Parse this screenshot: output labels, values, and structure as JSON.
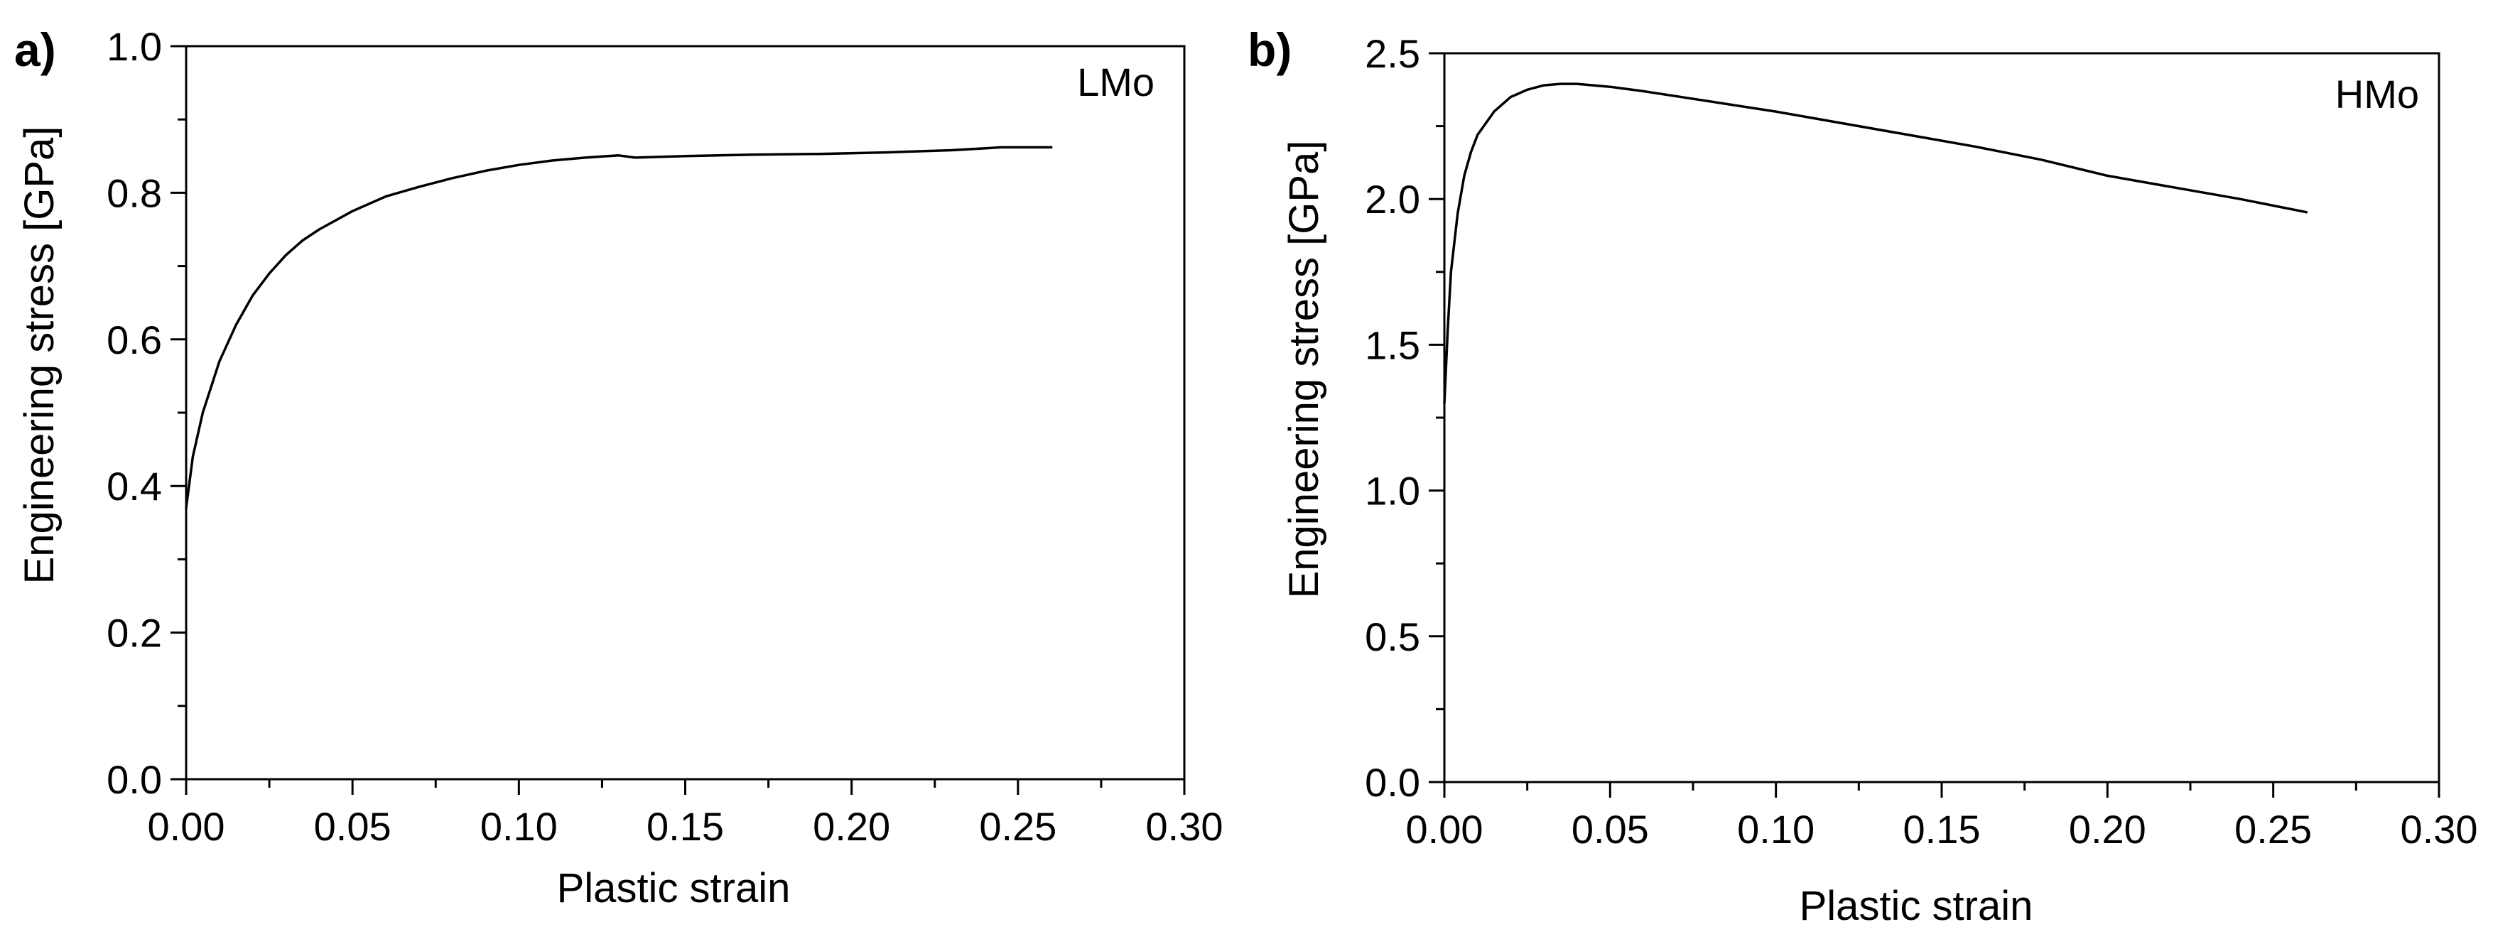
{
  "chart_data": [
    {
      "type": "line",
      "panel_label": "a)",
      "annotation": "LMo",
      "xlabel": "Plastic strain",
      "ylabel": "Engineering stress [GPa]",
      "xlim": [
        0.0,
        0.3
      ],
      "ylim": [
        0.0,
        1.0
      ],
      "x_ticks": [
        0.0,
        0.05,
        0.1,
        0.15,
        0.2,
        0.25,
        0.3
      ],
      "x_tick_labels": [
        "0.00",
        "0.05",
        "0.10",
        "0.15",
        "0.20",
        "0.25",
        "0.30"
      ],
      "x_minor_ticks": [
        0.025,
        0.075,
        0.125,
        0.175,
        0.225,
        0.275
      ],
      "y_ticks": [
        0.0,
        0.2,
        0.4,
        0.6,
        0.8,
        1.0
      ],
      "y_tick_labels": [
        "0.0",
        "0.2",
        "0.4",
        "0.6",
        "0.8",
        "1.0"
      ],
      "y_minor_ticks": [
        0.1,
        0.3,
        0.5,
        0.7,
        0.9
      ],
      "grid": false,
      "series": [
        {
          "name": "LMo",
          "x": [
            0.0,
            0.002,
            0.005,
            0.01,
            0.015,
            0.02,
            0.025,
            0.03,
            0.035,
            0.04,
            0.05,
            0.06,
            0.07,
            0.08,
            0.09,
            0.1,
            0.11,
            0.12,
            0.13,
            0.135,
            0.15,
            0.17,
            0.19,
            0.21,
            0.23,
            0.245,
            0.26
          ],
          "y": [
            0.37,
            0.44,
            0.5,
            0.57,
            0.62,
            0.66,
            0.69,
            0.715,
            0.735,
            0.75,
            0.775,
            0.795,
            0.808,
            0.82,
            0.83,
            0.838,
            0.844,
            0.848,
            0.851,
            0.848,
            0.85,
            0.852,
            0.853,
            0.855,
            0.858,
            0.862,
            0.862
          ]
        }
      ]
    },
    {
      "type": "line",
      "panel_label": "b)",
      "annotation": "HMo",
      "xlabel": "Plastic strain",
      "ylabel": "Engineering stress [GPa]",
      "xlim": [
        0.0,
        0.3
      ],
      "ylim": [
        0.0,
        2.5
      ],
      "x_ticks": [
        0.0,
        0.05,
        0.1,
        0.15,
        0.2,
        0.25,
        0.3
      ],
      "x_tick_labels": [
        "0.00",
        "0.05",
        "0.10",
        "0.15",
        "0.20",
        "0.25",
        "0.30"
      ],
      "x_minor_ticks": [
        0.025,
        0.075,
        0.125,
        0.175,
        0.225,
        0.275
      ],
      "y_ticks": [
        0.0,
        0.5,
        1.0,
        1.5,
        2.0,
        2.5
      ],
      "y_tick_labels": [
        "0.0",
        "0.5",
        "1.0",
        "1.5",
        "2.0",
        "2.5"
      ],
      "y_minor_ticks": [
        0.25,
        0.75,
        1.25,
        1.75,
        2.25
      ],
      "grid": false,
      "series": [
        {
          "name": "HMo",
          "x": [
            0.0,
            0.001,
            0.002,
            0.004,
            0.006,
            0.008,
            0.01,
            0.015,
            0.02,
            0.025,
            0.03,
            0.035,
            0.04,
            0.05,
            0.06,
            0.08,
            0.1,
            0.12,
            0.14,
            0.16,
            0.18,
            0.2,
            0.22,
            0.24,
            0.26
          ],
          "y": [
            1.3,
            1.55,
            1.75,
            1.95,
            2.08,
            2.16,
            2.22,
            2.3,
            2.35,
            2.375,
            2.39,
            2.395,
            2.395,
            2.385,
            2.37,
            2.335,
            2.3,
            2.26,
            2.22,
            2.18,
            2.135,
            2.08,
            2.04,
            2.0,
            1.955
          ]
        }
      ]
    }
  ]
}
